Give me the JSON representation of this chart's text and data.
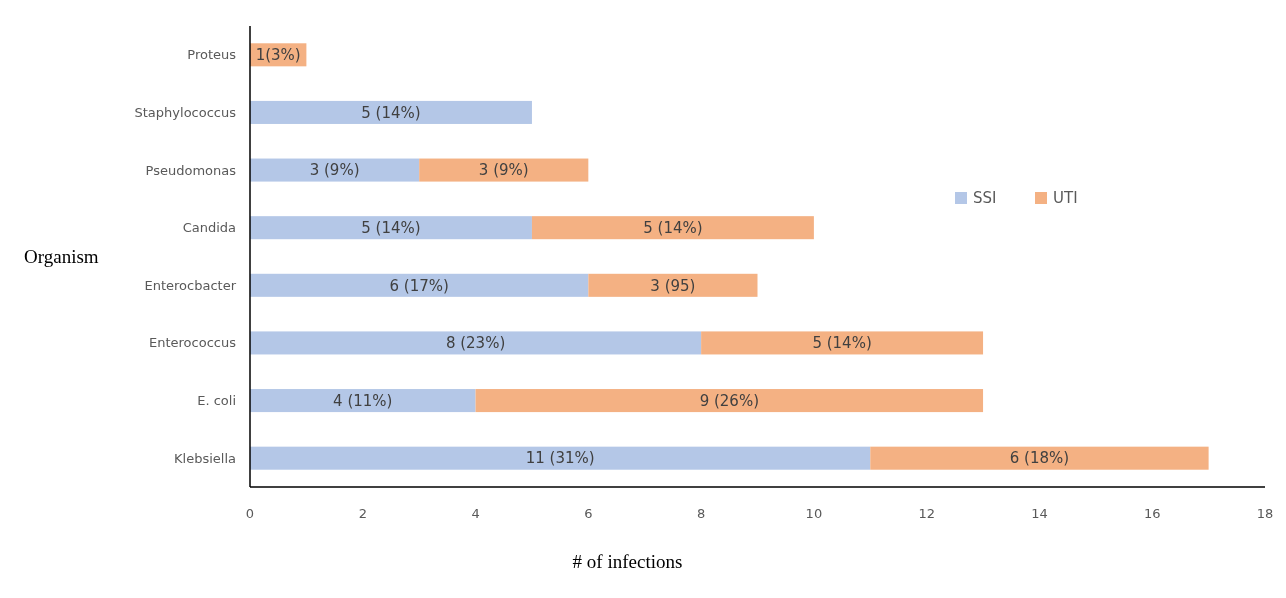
{
  "chart_data": {
    "type": "bar",
    "orientation": "horizontal",
    "stacked": true,
    "xlabel": "# of infections",
    "ylabel": "Organism",
    "categories": [
      "Proteus",
      "Staphylococcus",
      "Pseudomonas",
      "Candida",
      "Enterocbacter",
      "Enterococcus",
      "E. coli",
      "Klebsiella"
    ],
    "series": [
      {
        "name": "SSI",
        "color": "#b4c7e7",
        "values": [
          null,
          5,
          3,
          5,
          6,
          8,
          4,
          11
        ],
        "value_labels": [
          null,
          "5 (14%)",
          "3 (9%)",
          "5 (14%)",
          "6 (17%)",
          "8 (23%)",
          "4 (11%)",
          "11 (31%)"
        ]
      },
      {
        "name": "UTI",
        "color": "#f4b183",
        "values": [
          1,
          null,
          3,
          5,
          3,
          5,
          9,
          6
        ],
        "value_labels": [
          "1(3%)",
          null,
          "3 (9%)",
          "5 (14%)",
          "3 (95)",
          "5 (14%)",
          "9 (26%)",
          "6 (18%)"
        ]
      }
    ],
    "xlim": [
      0,
      18
    ],
    "xticks": [
      0,
      2,
      4,
      6,
      8,
      10,
      12,
      14,
      16,
      18
    ],
    "grid": false,
    "legend": "right"
  }
}
